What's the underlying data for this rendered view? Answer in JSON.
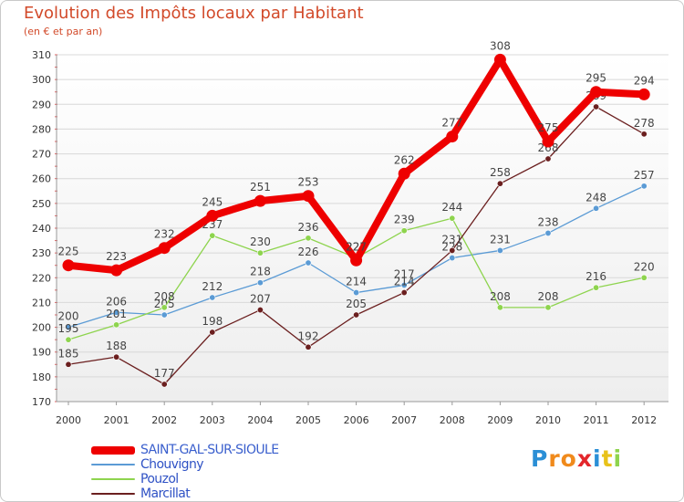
{
  "chart_data": {
    "type": "line",
    "title": "Evolution des Impôts locaux par Habitant",
    "subtitle": "(en € et par an)",
    "xlabel": "",
    "ylabel": "",
    "ylim": [
      170,
      310
    ],
    "yticks": [
      170,
      180,
      190,
      200,
      210,
      220,
      230,
      240,
      250,
      260,
      270,
      280,
      290,
      300,
      310
    ],
    "categories": [
      "2000",
      "2001",
      "2002",
      "2003",
      "2004",
      "2005",
      "2006",
      "2007",
      "2008",
      "2009",
      "2010",
      "2011",
      "2012"
    ],
    "series": [
      {
        "name": "SAINT-GAL-SUR-SIOULE",
        "color": "#ee0000",
        "values": [
          225,
          223,
          232,
          245,
          251,
          253,
          227,
          262,
          277,
          308,
          275,
          295,
          294
        ]
      },
      {
        "name": "Chouvigny",
        "color": "#5b9bd5",
        "values": [
          200,
          206,
          205,
          212,
          218,
          226,
          214,
          217,
          228,
          231,
          238,
          248,
          257
        ]
      },
      {
        "name": "Pouzol",
        "color": "#8ed44e",
        "values": [
          195,
          201,
          208,
          237,
          230,
          236,
          228,
          239,
          244,
          208,
          208,
          216,
          220
        ]
      },
      {
        "name": "Marcillat",
        "color": "#6b1f1f",
        "values": [
          185,
          188,
          177,
          198,
          207,
          192,
          205,
          214,
          231,
          258,
          268,
          289,
          278
        ]
      }
    ],
    "legend_position": "bottom-left",
    "grid": true
  },
  "logo": {
    "letters": [
      "P",
      "r",
      "o",
      "x",
      "i",
      "t",
      "i"
    ],
    "colors": [
      "#2b8fd6",
      "#f08a1c",
      "#f08a1c",
      "#e3262b",
      "#2b8fd6",
      "#e8c21a",
      "#8ed44e"
    ]
  }
}
